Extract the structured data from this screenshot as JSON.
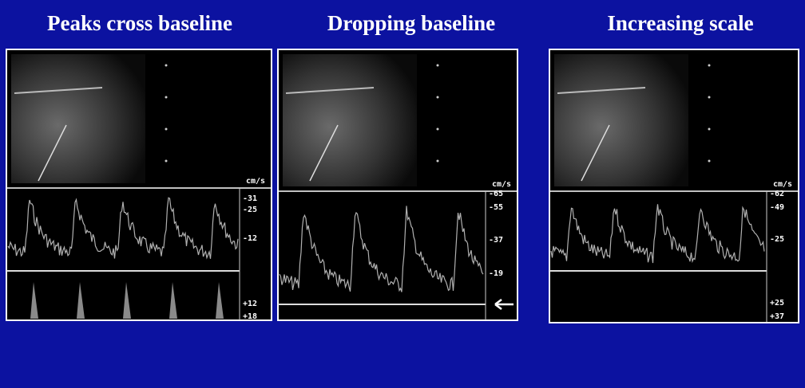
{
  "panels": [
    {
      "title": "Peaks cross baseline",
      "unit": "cm/s",
      "scale_labels": [
        "-31",
        "-25",
        "-12",
        "+12",
        "+18"
      ]
    },
    {
      "title": "Dropping baseline",
      "unit": "cm/s",
      "scale_labels": [
        "-65",
        "-55",
        "-37",
        "-19"
      ]
    },
    {
      "title": "Increasing scale",
      "unit": "cm/s",
      "scale_labels": [
        "-62",
        "-49",
        "-25",
        "+25",
        "+37"
      ]
    }
  ]
}
